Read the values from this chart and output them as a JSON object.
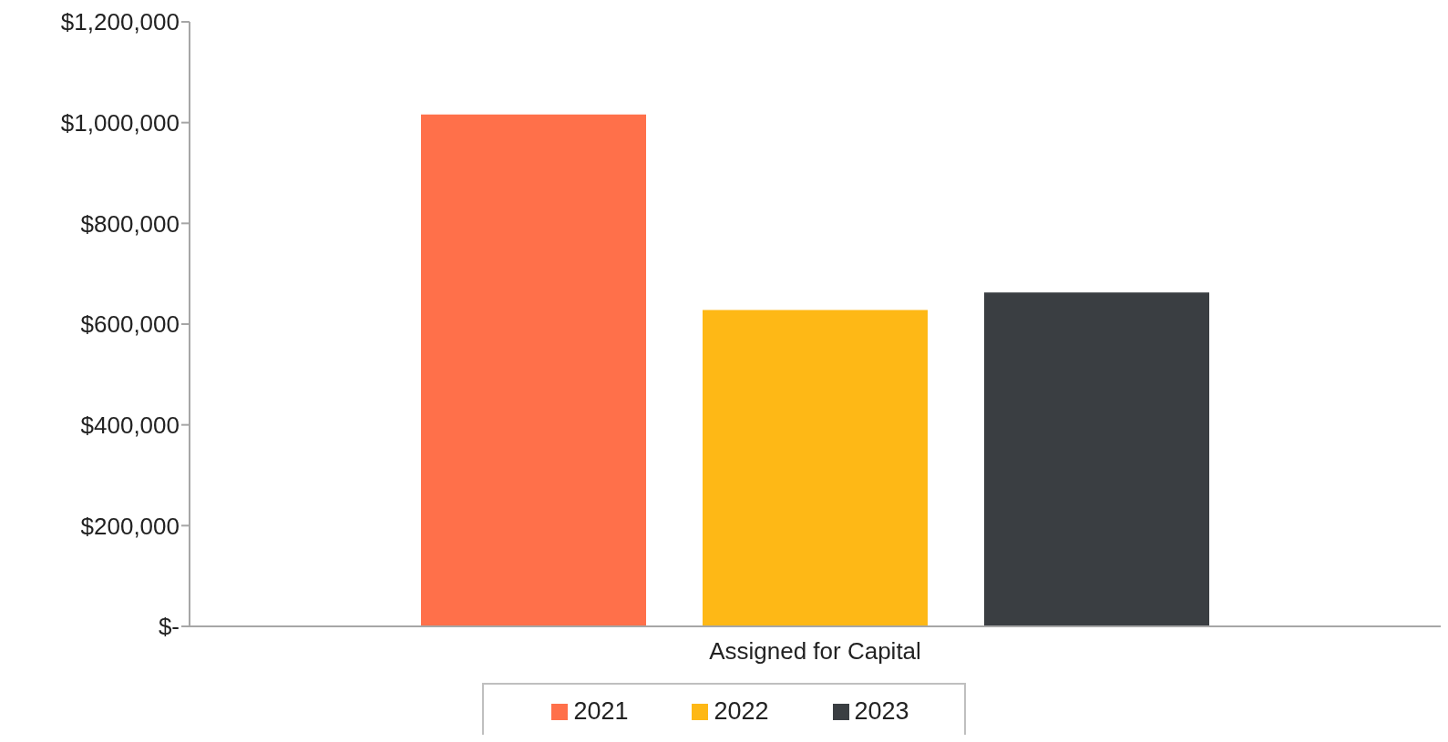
{
  "chart_data": {
    "type": "bar",
    "categories": [
      "Assigned for Capital"
    ],
    "series": [
      {
        "name": "2021",
        "color": "#ff704a",
        "values": [
          1016000
        ]
      },
      {
        "name": "2022",
        "color": "#feb816",
        "values": [
          628000
        ]
      },
      {
        "name": "2023",
        "color": "#3a3e42",
        "values": [
          663000
        ]
      }
    ],
    "ylim": [
      0,
      1200000
    ],
    "yticks": [
      {
        "value": 0,
        "label": "$-"
      },
      {
        "value": 200000,
        "label": "$200,000"
      },
      {
        "value": 400000,
        "label": "$400,000"
      },
      {
        "value": 600000,
        "label": "$600,000"
      },
      {
        "value": 800000,
        "label": "$800,000"
      },
      {
        "value": 1000000,
        "label": "$1,000,000"
      },
      {
        "value": 1200000,
        "label": "$1,200,000"
      }
    ],
    "grid": false,
    "legend": "bottom"
  }
}
